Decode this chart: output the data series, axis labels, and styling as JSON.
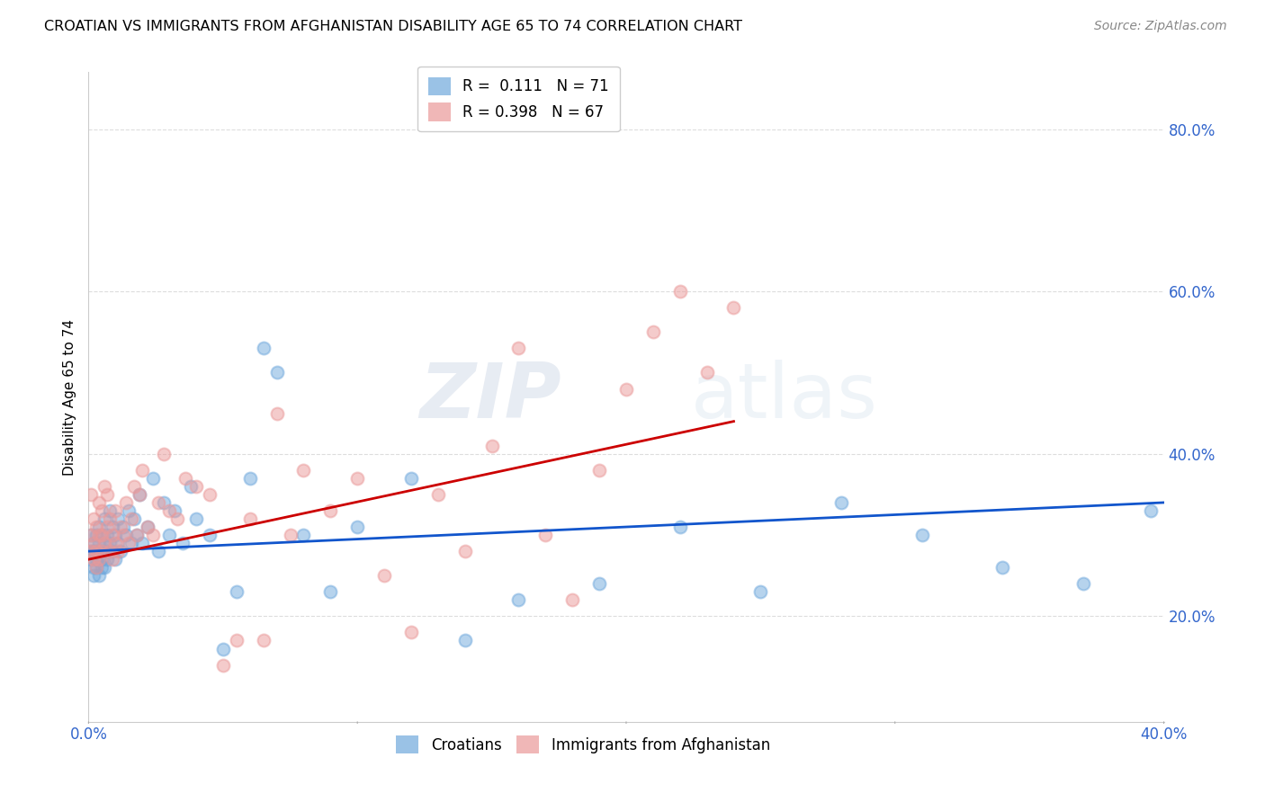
{
  "title": "CROATIAN VS IMMIGRANTS FROM AFGHANISTAN DISABILITY AGE 65 TO 74 CORRELATION CHART",
  "source": "Source: ZipAtlas.com",
  "xlabel_ticks": [
    "0.0%",
    "",
    "",
    "",
    "40.0%"
  ],
  "xlabel_tick_vals": [
    0.0,
    0.1,
    0.2,
    0.3,
    0.4
  ],
  "ylabel": "Disability Age 65 to 74",
  "ylabel_ticks": [
    "20.0%",
    "40.0%",
    "60.0%",
    "80.0%"
  ],
  "ylabel_tick_vals": [
    0.2,
    0.4,
    0.6,
    0.8
  ],
  "xmin": 0.0,
  "xmax": 0.4,
  "ymin": 0.07,
  "ymax": 0.87,
  "legend1_r": "0.111",
  "legend1_n": "71",
  "legend2_r": "0.398",
  "legend2_n": "67",
  "croatian_color": "#6fa8dc",
  "afghan_color": "#ea9999",
  "trendline_croatian_color": "#1155cc",
  "trendline_afghan_color": "#cc0000",
  "watermark_zip": "ZIP",
  "watermark_atlas": "atlas",
  "croatian_scatter_x": [
    0.001,
    0.001,
    0.001,
    0.002,
    0.002,
    0.002,
    0.002,
    0.003,
    0.003,
    0.003,
    0.003,
    0.004,
    0.004,
    0.004,
    0.004,
    0.005,
    0.005,
    0.005,
    0.005,
    0.006,
    0.006,
    0.006,
    0.007,
    0.007,
    0.007,
    0.008,
    0.008,
    0.009,
    0.009,
    0.01,
    0.01,
    0.011,
    0.011,
    0.012,
    0.013,
    0.014,
    0.015,
    0.016,
    0.017,
    0.018,
    0.019,
    0.02,
    0.022,
    0.024,
    0.026,
    0.028,
    0.03,
    0.032,
    0.035,
    0.038,
    0.04,
    0.045,
    0.05,
    0.055,
    0.06,
    0.065,
    0.07,
    0.08,
    0.09,
    0.1,
    0.12,
    0.14,
    0.16,
    0.19,
    0.22,
    0.25,
    0.28,
    0.31,
    0.34,
    0.37,
    0.395
  ],
  "croatian_scatter_y": [
    0.28,
    0.27,
    0.3,
    0.25,
    0.28,
    0.26,
    0.29,
    0.27,
    0.3,
    0.26,
    0.28,
    0.25,
    0.29,
    0.27,
    0.31,
    0.26,
    0.28,
    0.3,
    0.27,
    0.29,
    0.26,
    0.32,
    0.28,
    0.3,
    0.27,
    0.29,
    0.33,
    0.28,
    0.31,
    0.27,
    0.3,
    0.29,
    0.32,
    0.28,
    0.31,
    0.3,
    0.33,
    0.29,
    0.32,
    0.3,
    0.35,
    0.29,
    0.31,
    0.37,
    0.28,
    0.34,
    0.3,
    0.33,
    0.29,
    0.36,
    0.32,
    0.3,
    0.16,
    0.23,
    0.37,
    0.53,
    0.5,
    0.3,
    0.23,
    0.31,
    0.37,
    0.17,
    0.22,
    0.24,
    0.31,
    0.23,
    0.34,
    0.3,
    0.26,
    0.24,
    0.33
  ],
  "afghan_scatter_x": [
    0.001,
    0.001,
    0.001,
    0.002,
    0.002,
    0.002,
    0.003,
    0.003,
    0.003,
    0.004,
    0.004,
    0.004,
    0.005,
    0.005,
    0.005,
    0.006,
    0.006,
    0.007,
    0.007,
    0.008,
    0.008,
    0.009,
    0.009,
    0.01,
    0.01,
    0.011,
    0.012,
    0.013,
    0.014,
    0.015,
    0.016,
    0.017,
    0.018,
    0.019,
    0.02,
    0.022,
    0.024,
    0.026,
    0.028,
    0.03,
    0.033,
    0.036,
    0.04,
    0.045,
    0.05,
    0.055,
    0.06,
    0.065,
    0.07,
    0.075,
    0.08,
    0.09,
    0.1,
    0.11,
    0.12,
    0.13,
    0.14,
    0.15,
    0.16,
    0.17,
    0.18,
    0.19,
    0.2,
    0.21,
    0.22,
    0.23,
    0.24
  ],
  "afghan_scatter_y": [
    0.28,
    0.3,
    0.35,
    0.27,
    0.29,
    0.32,
    0.26,
    0.31,
    0.28,
    0.3,
    0.27,
    0.34,
    0.28,
    0.33,
    0.3,
    0.36,
    0.29,
    0.31,
    0.35,
    0.28,
    0.32,
    0.27,
    0.3,
    0.29,
    0.33,
    0.28,
    0.31,
    0.3,
    0.34,
    0.29,
    0.32,
    0.36,
    0.3,
    0.35,
    0.38,
    0.31,
    0.3,
    0.34,
    0.4,
    0.33,
    0.32,
    0.37,
    0.36,
    0.35,
    0.14,
    0.17,
    0.32,
    0.17,
    0.45,
    0.3,
    0.38,
    0.33,
    0.37,
    0.25,
    0.18,
    0.35,
    0.28,
    0.41,
    0.53,
    0.3,
    0.22,
    0.38,
    0.48,
    0.55,
    0.6,
    0.5,
    0.58
  ],
  "trendline_afghan_x0": 0.0,
  "trendline_afghan_x1": 0.24,
  "trendline_afghan_y0": 0.27,
  "trendline_afghan_y1": 0.44,
  "trendline_croatian_x0": 0.0,
  "trendline_croatian_x1": 0.4,
  "trendline_croatian_y0": 0.28,
  "trendline_croatian_y1": 0.34
}
